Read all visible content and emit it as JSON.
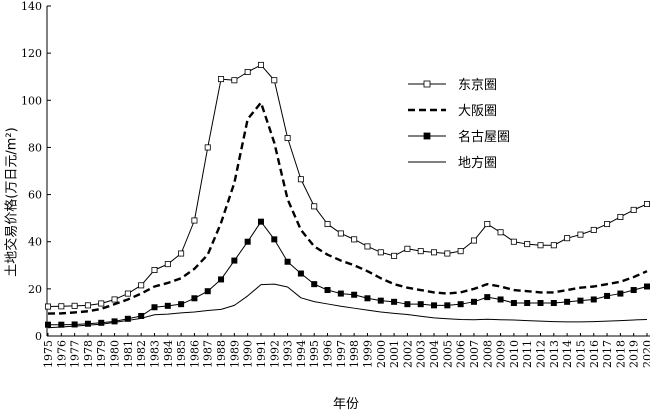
{
  "chart_data": {
    "type": "line",
    "xlabel": "年份",
    "ylabel": "土地交易价格(万日元/m²)",
    "ylim": [
      0,
      140
    ],
    "yticks": [
      0,
      20,
      40,
      60,
      80,
      100,
      120,
      140
    ],
    "x": [
      "1975",
      "1976",
      "1977",
      "1978",
      "1979",
      "1980",
      "1981",
      "1982",
      "1983",
      "1984",
      "1985",
      "1986",
      "1987",
      "1988",
      "1989",
      "1990",
      "1991",
      "1992",
      "1993",
      "1994",
      "1995",
      "1996",
      "1997",
      "1998",
      "1999",
      "2000",
      "2001",
      "2002",
      "2003",
      "2004",
      "2005",
      "2006",
      "2007",
      "2008",
      "2009",
      "2010",
      "2011",
      "2012",
      "2013",
      "2014",
      "2015",
      "2016",
      "2017",
      "2018",
      "2019",
      "2020"
    ],
    "grid": false,
    "legend_position": "right",
    "series": [
      {
        "name": "东京圈",
        "style": "open-square",
        "color": "#000000",
        "values": [
          12.5,
          12.6,
          12.8,
          13.0,
          13.8,
          15.5,
          18.0,
          21.5,
          28.0,
          30.5,
          35.0,
          49.0,
          80.0,
          109.0,
          108.5,
          112.0,
          115.0,
          108.5,
          84.0,
          66.5,
          55.0,
          47.5,
          43.5,
          41.0,
          38.0,
          35.5,
          34.0,
          37.0,
          36.0,
          35.5,
          35.0,
          36.0,
          40.5,
          47.5,
          44.0,
          40.0,
          39.0,
          38.5,
          38.5,
          41.5,
          43.0,
          45.0,
          47.5,
          50.5,
          53.5,
          56.0
        ]
      },
      {
        "name": "大阪圈",
        "style": "dashed",
        "color": "#000000",
        "values": [
          9.5,
          9.6,
          10.0,
          10.5,
          11.5,
          13.5,
          15.5,
          18.0,
          21.0,
          22.5,
          24.5,
          28.5,
          34.5,
          48.0,
          65.0,
          92.0,
          99.0,
          82.0,
          58.0,
          45.0,
          38.0,
          34.5,
          32.0,
          30.0,
          27.5,
          24.5,
          22.0,
          20.5,
          19.5,
          18.5,
          18.0,
          18.5,
          20.0,
          22.0,
          21.0,
          19.5,
          19.0,
          18.5,
          18.5,
          19.5,
          20.5,
          21.0,
          22.0,
          23.0,
          25.0,
          27.5
        ]
      },
      {
        "name": "名古屋圈",
        "style": "filled-square",
        "color": "#000000",
        "values": [
          4.8,
          4.8,
          4.9,
          5.2,
          5.6,
          6.2,
          7.3,
          8.5,
          12.2,
          12.8,
          13.5,
          16.0,
          19.0,
          24.0,
          32.0,
          40.0,
          48.5,
          41.0,
          31.5,
          26.5,
          22.0,
          19.5,
          18.0,
          17.5,
          16.0,
          15.0,
          14.5,
          13.5,
          13.5,
          13.0,
          13.0,
          13.5,
          14.5,
          16.5,
          15.5,
          14.0,
          14.0,
          14.0,
          14.0,
          14.5,
          15.0,
          15.5,
          17.0,
          18.0,
          19.5,
          21.0
        ]
      },
      {
        "name": "地方圈",
        "style": "solid",
        "color": "#000000",
        "values": [
          3.5,
          3.8,
          4.2,
          4.6,
          5.0,
          5.8,
          6.6,
          7.5,
          9.0,
          9.3,
          9.8,
          10.2,
          10.8,
          11.3,
          13.0,
          17.0,
          21.8,
          22.0,
          20.8,
          16.2,
          14.6,
          13.6,
          12.6,
          11.8,
          11.0,
          10.2,
          9.6,
          9.1,
          8.4,
          7.7,
          7.3,
          7.0,
          6.9,
          7.1,
          6.9,
          6.8,
          6.5,
          6.3,
          6.1,
          6.0,
          6.0,
          6.1,
          6.3,
          6.5,
          6.8,
          7.0
        ]
      }
    ]
  }
}
